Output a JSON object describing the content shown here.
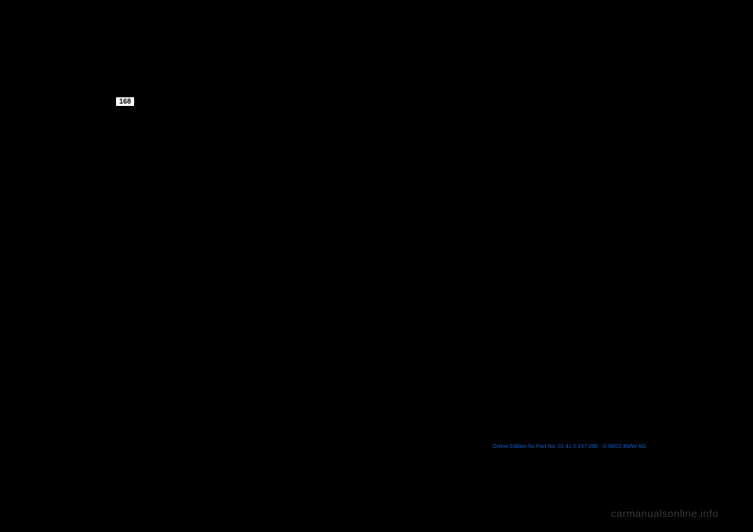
{
  "page": {
    "number": "168",
    "background_color": "#000000"
  },
  "edition": {
    "text": "Online Edition for Part No. 01 41 0 157 098 - © 08/02 BMW AG",
    "color": "#1060d0",
    "fontsize": 7
  },
  "watermark": {
    "text": "carmanualsonline.info",
    "color": "#3a3a3a",
    "fontsize": 13
  }
}
